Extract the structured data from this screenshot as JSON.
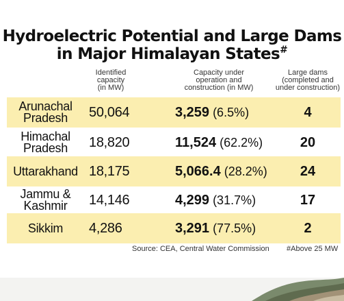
{
  "title": {
    "line1": "Hydroelectric Potential and Large Dams",
    "line2": "in Major Himalayan States",
    "mark": "#"
  },
  "headers": {
    "identified_capacity": [
      "Identified",
      "capacity",
      "(in MW)"
    ],
    "capacity_under": [
      "Capacity under",
      "operation and",
      "construction (in MW)"
    ],
    "large_dams": [
      "Large dams",
      "(completed and",
      "under construction)"
    ]
  },
  "rows": [
    {
      "state": [
        "Arunachal",
        "Pradesh"
      ],
      "identified": "50,064",
      "capacity": "3,259",
      "share": "(6.5%)",
      "dams": "4",
      "highlight": true
    },
    {
      "state": [
        "Himachal",
        "Pradesh"
      ],
      "identified": "18,820",
      "capacity": "11,524",
      "share": "(62.2%)",
      "dams": "20",
      "highlight": false
    },
    {
      "state": [
        "Uttarakhand"
      ],
      "identified": "18,175",
      "capacity": "5,066.4",
      "share": "(28.2%)",
      "dams": "24",
      "highlight": true
    },
    {
      "state": [
        "Jammu &",
        "Kashmir"
      ],
      "identified": "14,146",
      "capacity": "4,299",
      "share": "(31.7%)",
      "dams": "17",
      "highlight": false
    },
    {
      "state": [
        "Sikkim"
      ],
      "identified": "4,286",
      "capacity": "3,291",
      "share": "(77.5%)",
      "dams": "2",
      "highlight": true
    }
  ],
  "footer": {
    "source": "Source: CEA, Central Water Commission",
    "note": "#Above 25 MW"
  },
  "colors": {
    "highlight": "#fbeeb0",
    "text": "#111111"
  },
  "chart_data": {
    "type": "table",
    "title": "Hydroelectric Potential and Large Dams in Major Himalayan States#",
    "columns": [
      "",
      "Identified capacity (in MW)",
      "Capacity under operation and construction (in MW)",
      "Large dams (completed and under construction)"
    ],
    "rows": [
      [
        "Arunachal Pradesh",
        50064,
        "3,259 (6.5%)",
        4
      ],
      [
        "Himachal Pradesh",
        18820,
        "11,524 (62.2%)",
        20
      ],
      [
        "Uttarakhand",
        18175,
        "5,066.4 (28.2%)",
        24
      ],
      [
        "Jammu & Kashmir",
        14146,
        "4,299 (31.7%)",
        17
      ],
      [
        "Sikkim",
        4286,
        "3,291 (77.5%)",
        2
      ]
    ]
  }
}
